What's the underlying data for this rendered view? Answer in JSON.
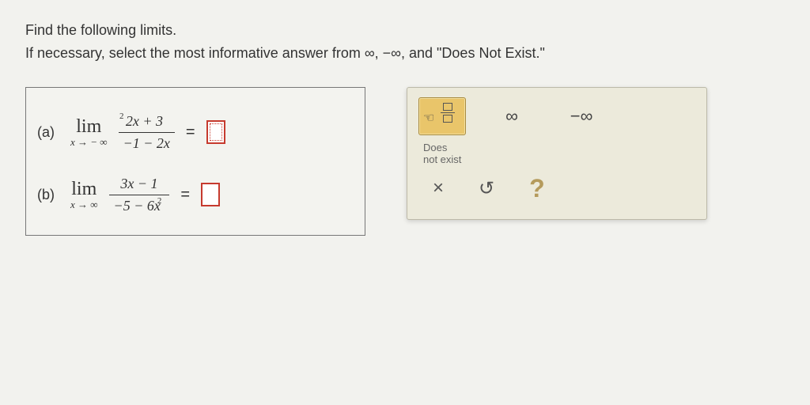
{
  "instructions": {
    "line1": "Find the following limits.",
    "line2": "If necessary, select the most informative answer from ∞, −∞, and \"Does Not Exist.\""
  },
  "problems": {
    "a": {
      "label": "(a)",
      "lim_word": "lim",
      "lim_under": "x → − ∞",
      "numerator": "2x  + 3",
      "num_sup": "2",
      "denominator": "−1 − 2x",
      "eq": "=",
      "answer": ""
    },
    "b": {
      "label": "(b)",
      "lim_word": "lim",
      "lim_under": "x → ∞",
      "numerator": "3x − 1",
      "denominator_pre": "−5 − 6x",
      "den_sup": "2",
      "eq": "=",
      "answer": ""
    }
  },
  "palette": {
    "frac_tooltip": "fraction",
    "infinity": "∞",
    "neg_infinity": "−∞",
    "dne": "Does\nnot exist",
    "close": "×",
    "undo": "↺",
    "help": "?"
  },
  "colors": {
    "answer_border": "#c63a2e",
    "palette_bg": "#eceadb",
    "palette_sel_bg": "#e9c56a",
    "page_bg": "#f2f2ee"
  }
}
